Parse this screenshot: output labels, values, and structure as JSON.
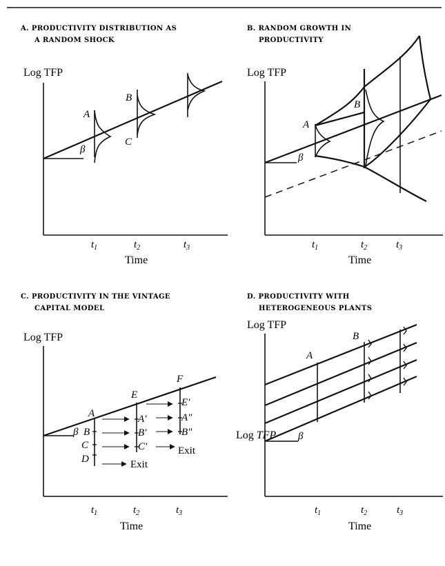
{
  "panels": [
    {
      "title": [
        "A.  PRODUCTIVITY DISTRIBUTION AS",
        "A RANDOM SHOCK"
      ],
      "ylabel": "Log TFP",
      "xlabel": "Time",
      "ticks": [
        "t1",
        "t2",
        "t3"
      ],
      "points": [
        "A",
        "B",
        "C",
        "β"
      ]
    },
    {
      "title": [
        "B.  RANDOM GROWTH IN",
        "PRODUCTIVITY"
      ],
      "ylabel": "Log TFP",
      "xlabel": "Time",
      "ticks": [
        "t1",
        "t2",
        "t3"
      ],
      "points": [
        "A",
        "B",
        "β"
      ]
    },
    {
      "title": [
        "C.  PRODUCTIVITY IN THE VINTAGE",
        "CAPITAL MODEL"
      ],
      "ylabel": "Log TFP",
      "xlabel": "Time",
      "ticks": [
        "t1",
        "t2",
        "t3"
      ],
      "points": [
        "A",
        "B",
        "C",
        "D",
        "E",
        "F",
        "A′",
        "B′",
        "C′",
        "E′",
        "A″",
        "B″",
        "β"
      ],
      "exit_labels": [
        "Exit",
        "Exit"
      ]
    },
    {
      "title": [
        "D.  PRODUCTIVITY WITH",
        "HETEROGENEOUS PLANTS"
      ],
      "ylabel": "Log TFP",
      "ylabel2": "Log TFP",
      "xlabel": "Time",
      "ticks": [
        "t1",
        "t2",
        "t3"
      ],
      "points": [
        "A",
        "B",
        "β"
      ]
    }
  ]
}
